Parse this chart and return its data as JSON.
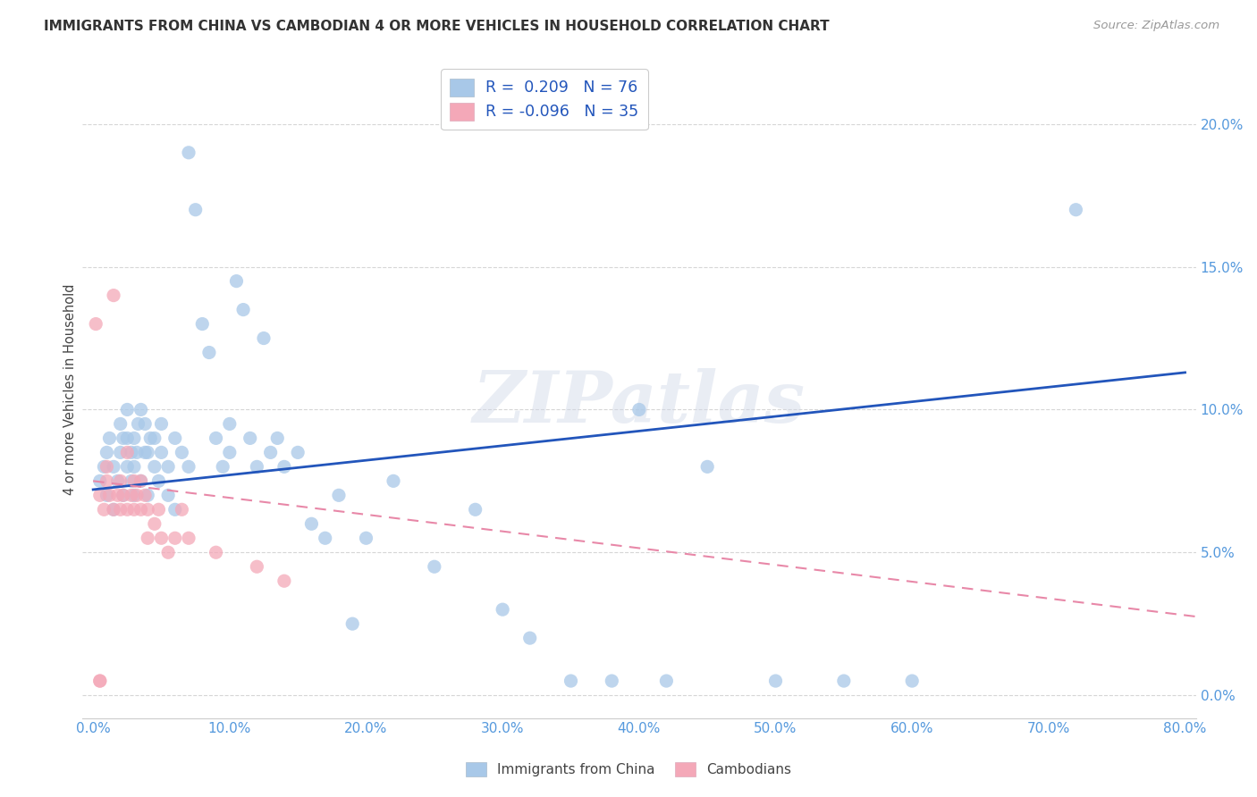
{
  "title": "IMMIGRANTS FROM CHINA VS CAMBODIAN 4 OR MORE VEHICLES IN HOUSEHOLD CORRELATION CHART",
  "source": "Source: ZipAtlas.com",
  "ylabel": "4 or more Vehicles in Household",
  "xlim": [
    0.0,
    0.8
  ],
  "ylim": [
    0.0,
    0.22
  ],
  "blue_R": 0.209,
  "blue_N": 76,
  "pink_R": -0.096,
  "pink_N": 35,
  "blue_color": "#a8c8e8",
  "pink_color": "#f4a8b8",
  "blue_line_color": "#2255bb",
  "pink_line_color": "#e888a8",
  "watermark": "ZIPatlas",
  "legend_label_blue": "Immigrants from China",
  "legend_label_pink": "Cambodians",
  "blue_line_x0": 0.0,
  "blue_line_y0": 0.072,
  "blue_line_x1": 0.8,
  "blue_line_y1": 0.113,
  "pink_line_x0": 0.0,
  "pink_line_y0": 0.075,
  "pink_line_x1": 0.8,
  "pink_line_y1": 0.028,
  "blue_x": [
    0.005,
    0.008,
    0.01,
    0.01,
    0.012,
    0.015,
    0.015,
    0.018,
    0.02,
    0.02,
    0.022,
    0.022,
    0.025,
    0.025,
    0.025,
    0.028,
    0.028,
    0.03,
    0.03,
    0.03,
    0.032,
    0.033,
    0.035,
    0.035,
    0.038,
    0.038,
    0.04,
    0.04,
    0.042,
    0.045,
    0.045,
    0.048,
    0.05,
    0.05,
    0.055,
    0.055,
    0.06,
    0.06,
    0.065,
    0.07,
    0.07,
    0.075,
    0.08,
    0.085,
    0.09,
    0.095,
    0.1,
    0.1,
    0.105,
    0.11,
    0.115,
    0.12,
    0.125,
    0.13,
    0.135,
    0.14,
    0.15,
    0.16,
    0.17,
    0.18,
    0.19,
    0.2,
    0.22,
    0.25,
    0.28,
    0.3,
    0.32,
    0.35,
    0.38,
    0.4,
    0.42,
    0.45,
    0.5,
    0.55,
    0.6,
    0.72
  ],
  "blue_y": [
    0.075,
    0.08,
    0.07,
    0.085,
    0.09,
    0.065,
    0.08,
    0.075,
    0.085,
    0.095,
    0.07,
    0.09,
    0.08,
    0.09,
    0.1,
    0.075,
    0.085,
    0.07,
    0.08,
    0.09,
    0.085,
    0.095,
    0.1,
    0.075,
    0.085,
    0.095,
    0.07,
    0.085,
    0.09,
    0.08,
    0.09,
    0.075,
    0.085,
    0.095,
    0.08,
    0.07,
    0.065,
    0.09,
    0.085,
    0.08,
    0.19,
    0.17,
    0.13,
    0.12,
    0.09,
    0.08,
    0.085,
    0.095,
    0.145,
    0.135,
    0.09,
    0.08,
    0.125,
    0.085,
    0.09,
    0.08,
    0.085,
    0.06,
    0.055,
    0.07,
    0.025,
    0.055,
    0.075,
    0.045,
    0.065,
    0.03,
    0.02,
    0.005,
    0.005,
    0.1,
    0.005,
    0.08,
    0.005,
    0.005,
    0.005,
    0.17
  ],
  "pink_x": [
    0.002,
    0.005,
    0.005,
    0.005,
    0.008,
    0.01,
    0.01,
    0.012,
    0.015,
    0.015,
    0.018,
    0.02,
    0.02,
    0.022,
    0.025,
    0.025,
    0.028,
    0.03,
    0.03,
    0.032,
    0.035,
    0.035,
    0.038,
    0.04,
    0.04,
    0.045,
    0.048,
    0.05,
    0.055,
    0.06,
    0.065,
    0.07,
    0.09,
    0.12,
    0.14
  ],
  "pink_y": [
    0.13,
    0.005,
    0.005,
    0.07,
    0.065,
    0.075,
    0.08,
    0.07,
    0.065,
    0.14,
    0.07,
    0.065,
    0.075,
    0.07,
    0.065,
    0.085,
    0.07,
    0.065,
    0.075,
    0.07,
    0.065,
    0.075,
    0.07,
    0.065,
    0.055,
    0.06,
    0.065,
    0.055,
    0.05,
    0.055,
    0.065,
    0.055,
    0.05,
    0.045,
    0.04
  ]
}
